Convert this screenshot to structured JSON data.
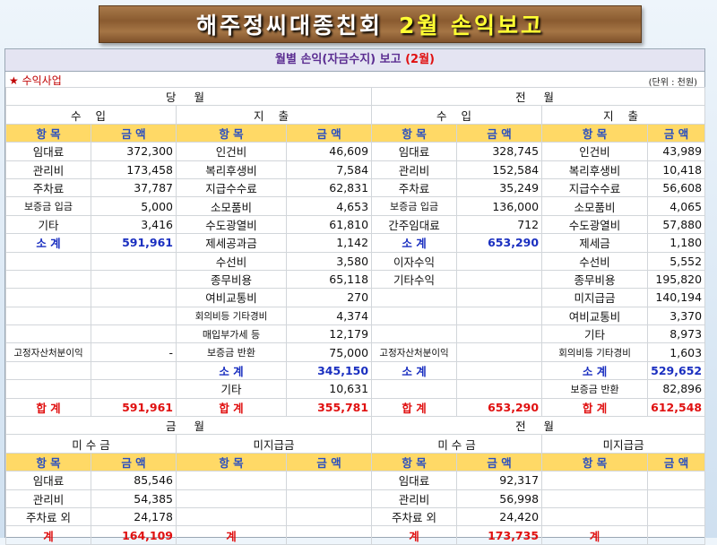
{
  "banner": {
    "title_white": "해주정씨대종친회",
    "title_yellow": "2월 손익보고"
  },
  "panel": {
    "title": "월별 손익(자금수지) 보고",
    "title_month": "(2월)",
    "section": "★ 수익사업",
    "unit": "(단위 : 천원)"
  },
  "labels": {
    "current": "당 월",
    "previous": "전 월",
    "income": "수 입",
    "expense": "지 출",
    "item": "항 목",
    "amount": "금 액",
    "subtotal": "소 계",
    "total": "합 계",
    "cur_month2": "금 월",
    "prev_month2": "전 월",
    "receivable": "미 수 금",
    "unpaid": "미지급금",
    "sum": "계"
  },
  "rows": [
    [
      "임대료",
      "372,300",
      "인건비",
      "46,609",
      "임대료",
      "328,745",
      "인건비",
      "43,989"
    ],
    [
      "관리비",
      "173,458",
      "복리후생비",
      "7,584",
      "관리비",
      "152,584",
      "복리후생비",
      "10,418"
    ],
    [
      "주차료",
      "37,787",
      "지급수수료",
      "62,831",
      "주차료",
      "35,249",
      "지급수수료",
      "56,608"
    ],
    [
      "보증금 입금",
      "5,000",
      "소모품비",
      "4,653",
      "보증금 입금",
      "136,000",
      "소모품비",
      "4,065"
    ],
    [
      "기타",
      "3,416",
      "수도광열비",
      "61,810",
      "간주임대료",
      "712",
      "수도광열비",
      "57,880"
    ],
    [
      "소 계",
      "591,961",
      "제세공과금",
      "1,142",
      "소 계",
      "653,290",
      "제세금",
      "1,180"
    ],
    [
      "",
      "",
      "수선비",
      "3,580",
      "이자수익",
      "",
      "수선비",
      "5,552"
    ],
    [
      "",
      "",
      "종무비용",
      "65,118",
      "기타수익",
      "",
      "종무비용",
      "195,820"
    ],
    [
      "",
      "",
      "여비교통비",
      "270",
      "",
      "",
      "미지급금",
      "140,194"
    ],
    [
      "",
      "",
      "회의비등 기타경비",
      "4,374",
      "",
      "",
      "여비교통비",
      "3,370"
    ],
    [
      "",
      "",
      "매입부가세 등",
      "12,179",
      "",
      "",
      "기타",
      "8,973"
    ],
    [
      "고정자산처분이익",
      "-",
      "보증금 반환",
      "75,000",
      "고정자산처분이익",
      "",
      "회의비등 기타경비",
      "1,603"
    ],
    [
      "",
      "",
      "소 계",
      "345,150",
      "소 계",
      "",
      "소 계",
      "529,652"
    ],
    [
      "",
      "",
      "기타",
      "10,631",
      "",
      "",
      "보증금 반환",
      "82,896"
    ],
    [
      "합 계",
      "591,961",
      "합 계",
      "355,781",
      "합 계",
      "653,290",
      "합 계",
      "612,548"
    ]
  ],
  "ar_rows": [
    [
      "임대료",
      "85,546",
      "",
      "",
      "임대료",
      "92,317",
      "",
      ""
    ],
    [
      "관리비",
      "54,385",
      "",
      "",
      "관리비",
      "56,998",
      "",
      ""
    ],
    [
      "주차료 외",
      "24,178",
      "",
      "",
      "주차료 외",
      "24,420",
      "",
      ""
    ],
    [
      "계",
      "164,109",
      "계",
      "",
      "계",
      "173,735",
      "계",
      ""
    ]
  ]
}
